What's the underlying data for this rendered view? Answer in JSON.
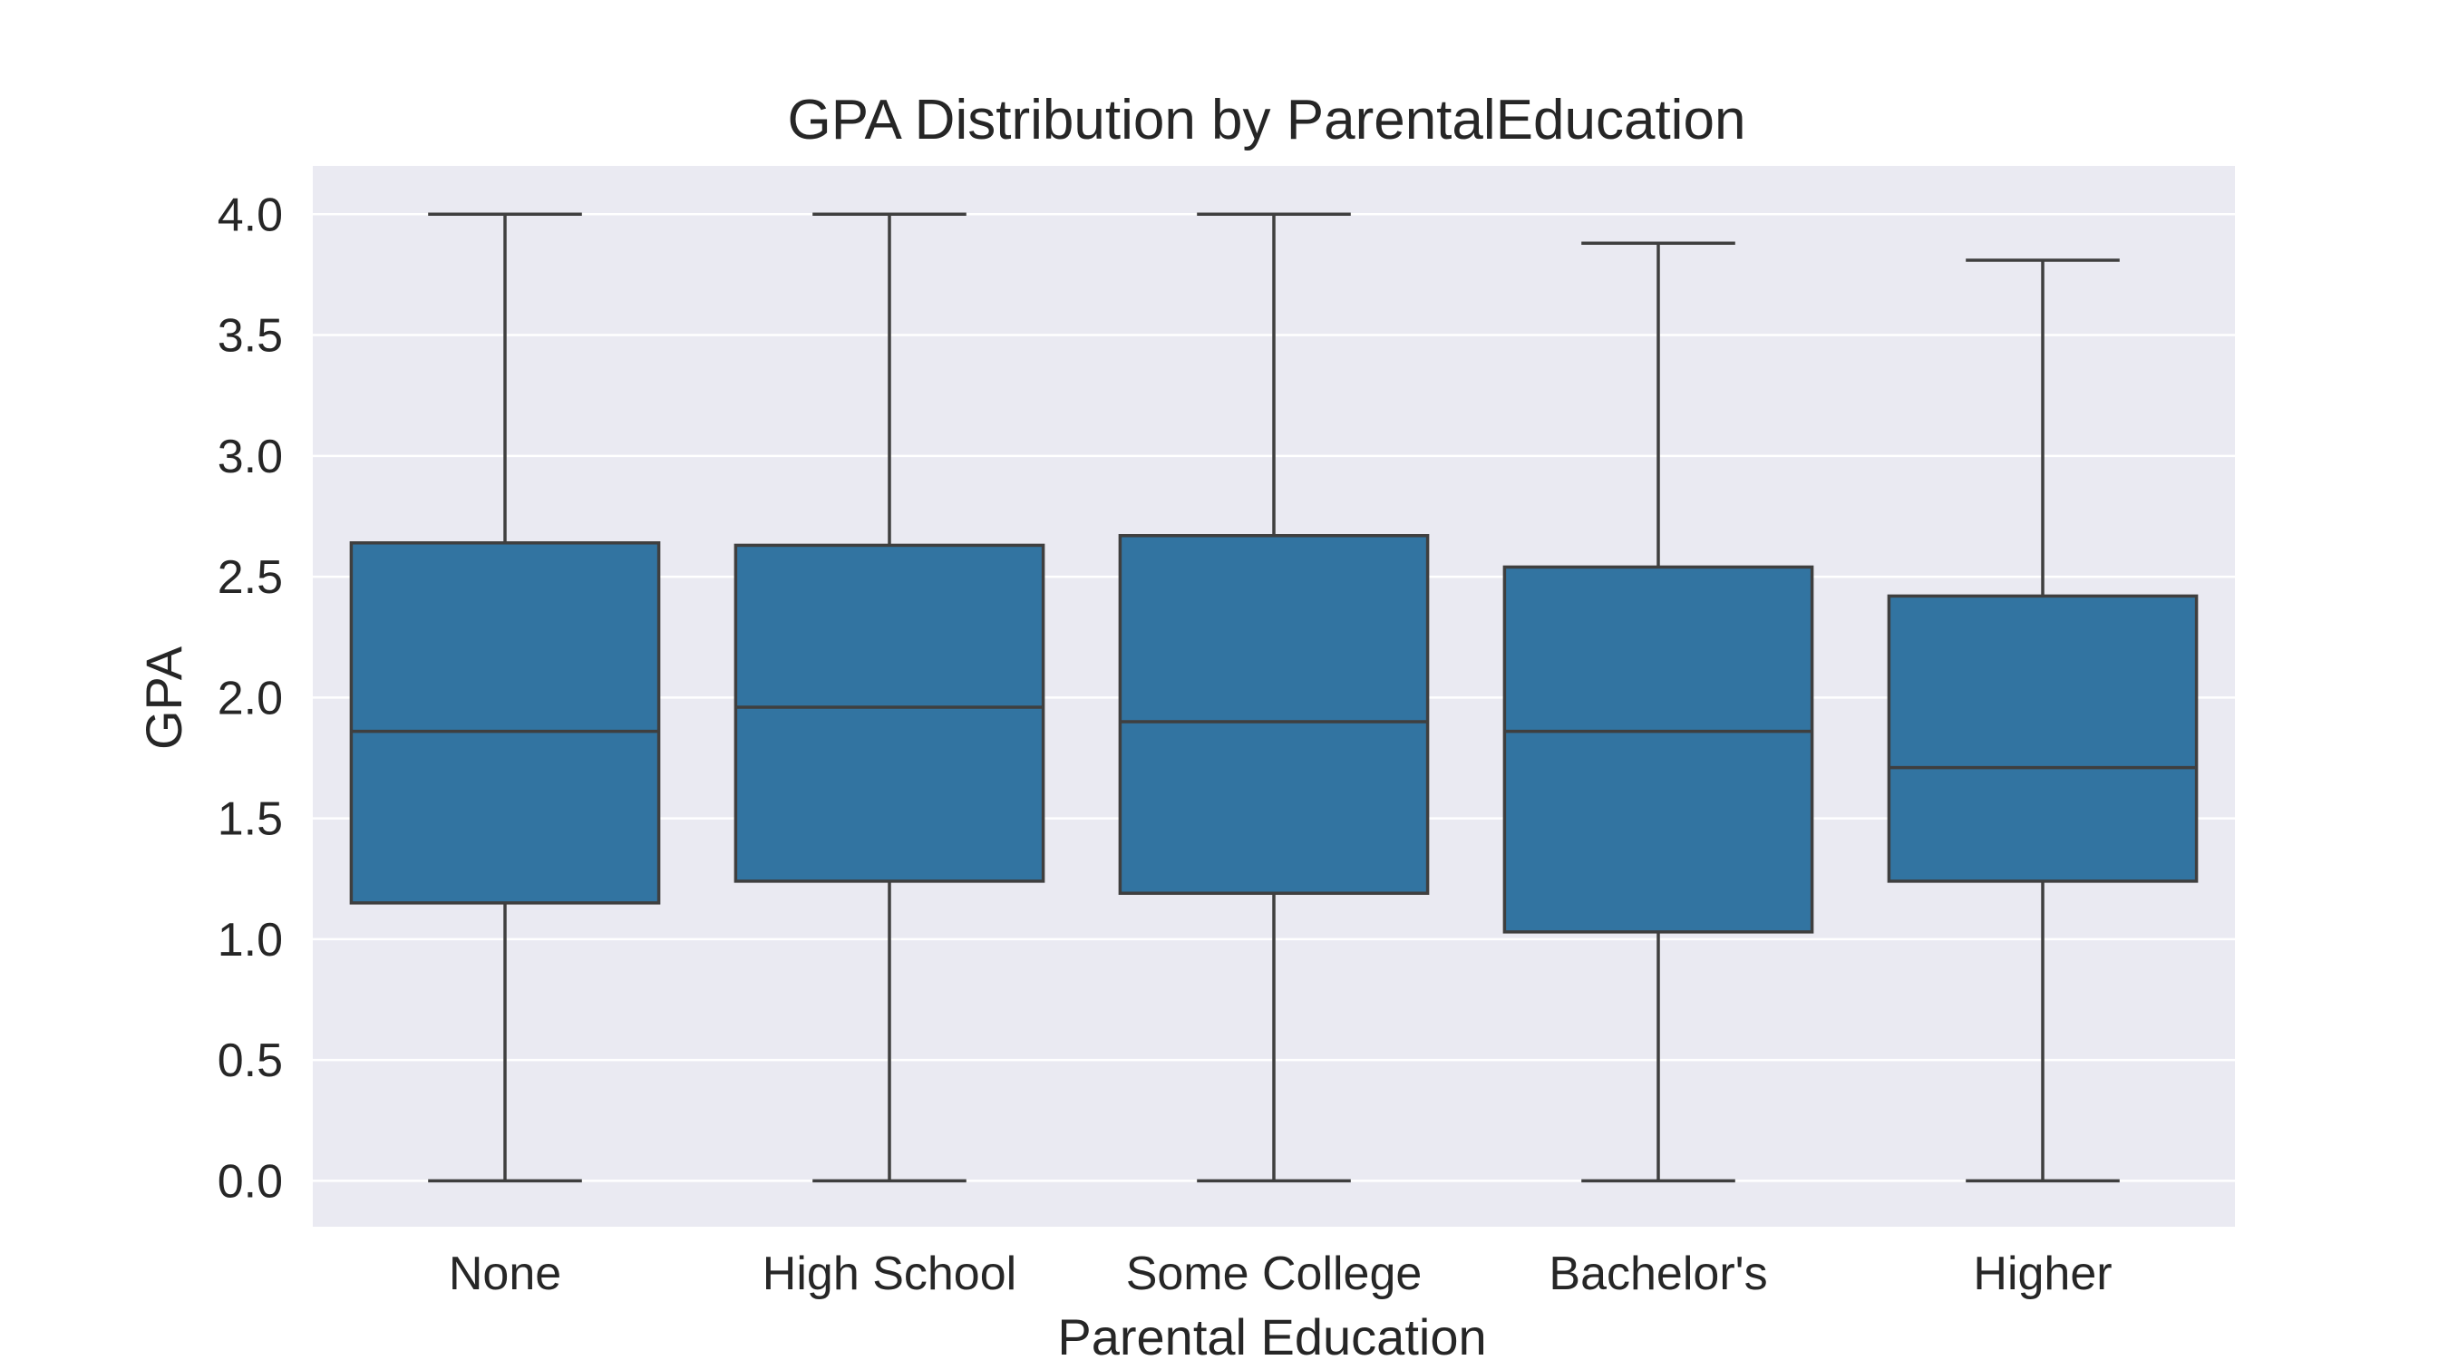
{
  "chart_data": {
    "type": "box",
    "title": "GPA Distribution by ParentalEducation",
    "xlabel": "Parental Education",
    "ylabel": "GPA",
    "categories": [
      "None",
      "High School",
      "Some College",
      "Bachelor's",
      "Higher"
    ],
    "boxes": [
      {
        "category": "None",
        "whisker_low": 0.0,
        "q1": 1.15,
        "median": 1.86,
        "q3": 2.64,
        "whisker_high": 4.0
      },
      {
        "category": "High School",
        "whisker_low": 0.0,
        "q1": 1.24,
        "median": 1.96,
        "q3": 2.63,
        "whisker_high": 4.0
      },
      {
        "category": "Some College",
        "whisker_low": 0.0,
        "q1": 1.19,
        "median": 1.9,
        "q3": 2.67,
        "whisker_high": 4.0
      },
      {
        "category": "Bachelor's",
        "whisker_low": 0.0,
        "q1": 1.03,
        "median": 1.86,
        "q3": 2.54,
        "whisker_high": 3.88
      },
      {
        "category": "Higher",
        "whisker_low": 0.0,
        "q1": 1.24,
        "median": 1.71,
        "q3": 2.42,
        "whisker_high": 3.81
      }
    ],
    "yticks": [
      "0.0",
      "0.5",
      "1.0",
      "1.5",
      "2.0",
      "2.5",
      "3.0",
      "3.5",
      "4.0"
    ],
    "ylim": [
      -0.19,
      4.2
    ],
    "grid": true,
    "colors": {
      "box_fill": "#3274a1",
      "line": "#3f3f3f",
      "plot_background": "#eaeaf2",
      "gridline": "#ffffff"
    }
  }
}
